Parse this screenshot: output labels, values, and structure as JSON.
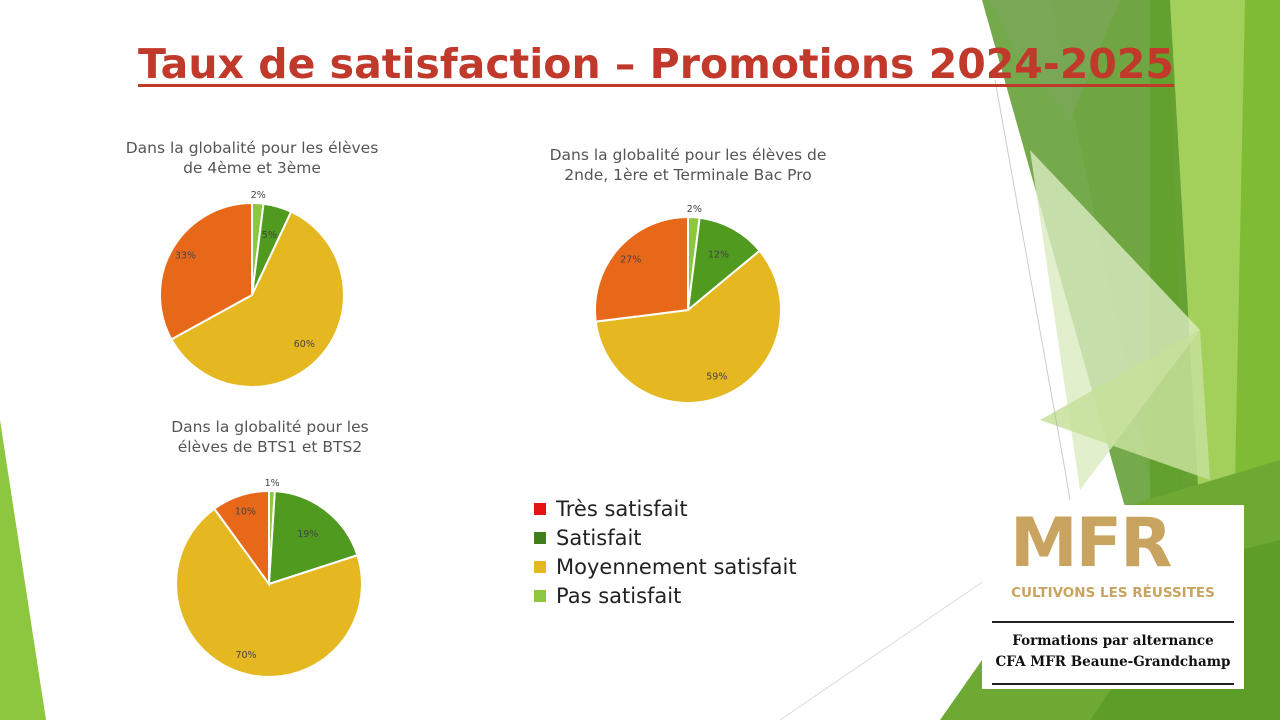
{
  "slide": {
    "title": "Taux de satisfaction – Promotions 2024-2025",
    "colors": {
      "title": "#c0392b",
      "tres_satisfait": "#e41414",
      "satisfait": "#4f9a1f",
      "moyennement_satisfait": "#e5b822",
      "pas_satisfait": "#8dc63f",
      "orange_slice": "#e8681a"
    }
  },
  "legend": [
    {
      "label": "Très satisfait",
      "color": "#e41414"
    },
    {
      "label": "Satisfait",
      "color": "#3f7f1c"
    },
    {
      "label": "Moyennement satisfait",
      "color": "#e5b822"
    },
    {
      "label": "Pas satisfait",
      "color": "#8dc63f"
    }
  ],
  "chart_data": [
    {
      "type": "pie",
      "title_lines": [
        "Dans la globalité pour les élèves",
        "de 4ème et 3ème"
      ],
      "slices": [
        {
          "label": "2%",
          "value": 2,
          "color": "#8dc63f"
        },
        {
          "label": "5%",
          "value": 5,
          "color": "#4f9a1f"
        },
        {
          "label": "60%",
          "value": 60,
          "color": "#e5b822"
        },
        {
          "label": "33%",
          "value": 33,
          "color": "#e8681a"
        }
      ]
    },
    {
      "type": "pie",
      "title_lines": [
        "Dans la globalité pour les élèves de",
        "2nde, 1ère et Terminale Bac Pro"
      ],
      "slices": [
        {
          "label": "2%",
          "value": 2,
          "color": "#8dc63f"
        },
        {
          "label": "12%",
          "value": 12,
          "color": "#4f9a1f"
        },
        {
          "label": "59%",
          "value": 59,
          "color": "#e5b822"
        },
        {
          "label": "27%",
          "value": 27,
          "color": "#e8681a"
        }
      ]
    },
    {
      "type": "pie",
      "title_lines": [
        "Dans la globalité pour les",
        "élèves de BTS1 et BTS2"
      ],
      "slices": [
        {
          "label": "1%",
          "value": 1,
          "color": "#8dc63f"
        },
        {
          "label": "19%",
          "value": 19,
          "color": "#4f9a1f"
        },
        {
          "label": "70%",
          "value": 70,
          "color": "#e5b822"
        },
        {
          "label": "10%",
          "value": 10,
          "color": "#e8681a"
        }
      ]
    }
  ],
  "logo": {
    "wordmark": "MFR",
    "slogan": "CULTIVONS LES RÉUSSITES",
    "line1": "Formations par alternance",
    "line2": "CFA MFR Beaune-Grandchamp"
  }
}
